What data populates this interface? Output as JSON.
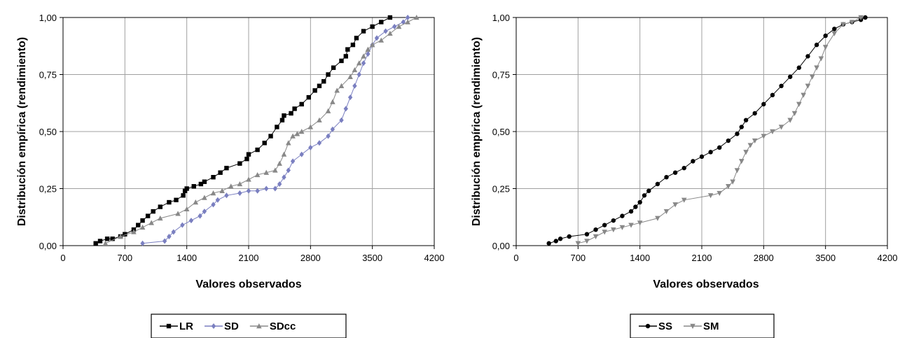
{
  "chart_data": [
    {
      "type": "line",
      "xlabel": "Valores observados",
      "ylabel": "Distribución empírica (rendimiento)",
      "xlim": [
        0,
        4200
      ],
      "ylim": [
        0,
        1
      ],
      "xticks": [
        0,
        700,
        1400,
        2100,
        2800,
        3500,
        4200
      ],
      "xtick_labels": [
        "0",
        "700",
        "1400",
        "2100",
        "2800",
        "3500",
        "4200"
      ],
      "yticks": [
        0,
        0.25,
        0.5,
        0.75,
        1
      ],
      "ytick_labels": [
        "0,00",
        "0,25",
        "0,50",
        "0,75",
        "1,00"
      ],
      "grid": true,
      "legend_position": "bottom",
      "series": [
        {
          "name": "LR",
          "color": "#000000",
          "marker": "square",
          "x": [
            370,
            420,
            500,
            560,
            650,
            700,
            800,
            850,
            900,
            960,
            1020,
            1100,
            1200,
            1280,
            1360,
            1380,
            1400,
            1480,
            1560,
            1600,
            1700,
            1780,
            1850,
            2000,
            2080,
            2100,
            2200,
            2280,
            2350,
            2420,
            2480,
            2500,
            2580,
            2620,
            2700,
            2780,
            2850,
            2900,
            2950,
            3000,
            3060,
            3150,
            3200,
            3220,
            3280,
            3320,
            3400,
            3500,
            3600,
            3700
          ],
          "y": [
            0.01,
            0.02,
            0.03,
            0.03,
            0.04,
            0.05,
            0.07,
            0.09,
            0.11,
            0.13,
            0.15,
            0.17,
            0.19,
            0.2,
            0.22,
            0.24,
            0.25,
            0.26,
            0.27,
            0.28,
            0.3,
            0.32,
            0.34,
            0.36,
            0.38,
            0.4,
            0.42,
            0.45,
            0.48,
            0.52,
            0.55,
            0.57,
            0.58,
            0.6,
            0.62,
            0.65,
            0.68,
            0.7,
            0.72,
            0.75,
            0.78,
            0.81,
            0.83,
            0.86,
            0.88,
            0.91,
            0.94,
            0.96,
            0.98,
            1.0
          ],
          "y_label_note": ""
        },
        {
          "name": "SD",
          "color": "#7a7fc0",
          "marker": "diamond",
          "x": [
            900,
            1150,
            1200,
            1250,
            1350,
            1450,
            1550,
            1600,
            1700,
            1750,
            1850,
            2000,
            2100,
            2200,
            2300,
            2400,
            2450,
            2500,
            2550,
            2600,
            2700,
            2800,
            2900,
            3000,
            3050,
            3150,
            3200,
            3250,
            3300,
            3350,
            3400,
            3450,
            3500,
            3550,
            3650,
            3750,
            3850,
            3900
          ],
          "y": [
            0.01,
            0.02,
            0.04,
            0.06,
            0.09,
            0.11,
            0.13,
            0.15,
            0.18,
            0.2,
            0.22,
            0.23,
            0.24,
            0.24,
            0.25,
            0.25,
            0.27,
            0.3,
            0.33,
            0.37,
            0.4,
            0.43,
            0.45,
            0.48,
            0.51,
            0.55,
            0.6,
            0.65,
            0.7,
            0.75,
            0.8,
            0.84,
            0.88,
            0.91,
            0.94,
            0.96,
            0.98,
            1.0
          ]
        },
        {
          "name": "SDcc",
          "color": "#888888",
          "marker": "triangle",
          "x": [
            480,
            650,
            800,
            900,
            1000,
            1100,
            1300,
            1400,
            1500,
            1600,
            1700,
            1800,
            1900,
            2000,
            2100,
            2200,
            2300,
            2400,
            2450,
            2500,
            2550,
            2600,
            2650,
            2700,
            2800,
            2900,
            3000,
            3050,
            3100,
            3150,
            3250,
            3300,
            3350,
            3400,
            3450,
            3500,
            3600,
            3700,
            3800,
            3900,
            4000
          ],
          "y": [
            0.01,
            0.04,
            0.06,
            0.08,
            0.1,
            0.12,
            0.14,
            0.16,
            0.19,
            0.21,
            0.23,
            0.24,
            0.26,
            0.27,
            0.29,
            0.31,
            0.32,
            0.33,
            0.36,
            0.4,
            0.45,
            0.48,
            0.49,
            0.5,
            0.52,
            0.55,
            0.59,
            0.63,
            0.68,
            0.7,
            0.74,
            0.77,
            0.8,
            0.83,
            0.86,
            0.88,
            0.9,
            0.93,
            0.96,
            0.98,
            1.0
          ]
        }
      ]
    },
    {
      "type": "line",
      "xlabel": "Valores observados",
      "ylabel": "Distribución empírica (rendimiento)",
      "xlim": [
        0,
        4200
      ],
      "ylim": [
        0,
        1
      ],
      "xticks": [
        0,
        700,
        1400,
        2100,
        2800,
        3500,
        4200
      ],
      "xtick_labels": [
        "0",
        "700",
        "1400",
        "2100",
        "2800",
        "3500",
        "4200"
      ],
      "yticks": [
        0,
        0.25,
        0.5,
        0.75,
        1
      ],
      "ytick_labels": [
        "0,00",
        "0,25",
        "0,50",
        "0,75",
        "1,00"
      ],
      "grid": true,
      "legend_position": "bottom",
      "series": [
        {
          "name": "SS",
          "color": "#000000",
          "marker": "circle",
          "x": [
            370,
            450,
            500,
            600,
            800,
            900,
            1000,
            1100,
            1200,
            1300,
            1350,
            1400,
            1450,
            1500,
            1600,
            1700,
            1800,
            1900,
            2000,
            2100,
            2200,
            2300,
            2400,
            2500,
            2550,
            2600,
            2700,
            2800,
            2900,
            3000,
            3100,
            3200,
            3300,
            3400,
            3500,
            3600,
            3700,
            3800,
            3900,
            3950
          ],
          "y": [
            0.01,
            0.02,
            0.03,
            0.04,
            0.05,
            0.07,
            0.09,
            0.11,
            0.13,
            0.15,
            0.17,
            0.19,
            0.22,
            0.24,
            0.27,
            0.3,
            0.32,
            0.34,
            0.37,
            0.39,
            0.41,
            0.43,
            0.46,
            0.49,
            0.52,
            0.55,
            0.58,
            0.62,
            0.66,
            0.7,
            0.74,
            0.78,
            0.83,
            0.88,
            0.92,
            0.95,
            0.97,
            0.98,
            0.99,
            1.0
          ]
        },
        {
          "name": "SM",
          "color": "#888888",
          "marker": "triangle-down",
          "x": [
            700,
            800,
            900,
            1000,
            1100,
            1200,
            1300,
            1400,
            1600,
            1700,
            1800,
            1900,
            2200,
            2300,
            2400,
            2450,
            2500,
            2550,
            2600,
            2650,
            2700,
            2800,
            2900,
            3000,
            3100,
            3150,
            3200,
            3250,
            3300,
            3350,
            3400,
            3450,
            3500,
            3600,
            3700,
            3800,
            3900
          ],
          "y": [
            0.01,
            0.02,
            0.04,
            0.06,
            0.07,
            0.08,
            0.09,
            0.1,
            0.12,
            0.15,
            0.18,
            0.2,
            0.22,
            0.23,
            0.26,
            0.28,
            0.33,
            0.37,
            0.41,
            0.44,
            0.46,
            0.48,
            0.5,
            0.52,
            0.55,
            0.58,
            0.62,
            0.66,
            0.7,
            0.74,
            0.78,
            0.82,
            0.87,
            0.93,
            0.97,
            0.98,
            1.0
          ]
        }
      ]
    }
  ]
}
